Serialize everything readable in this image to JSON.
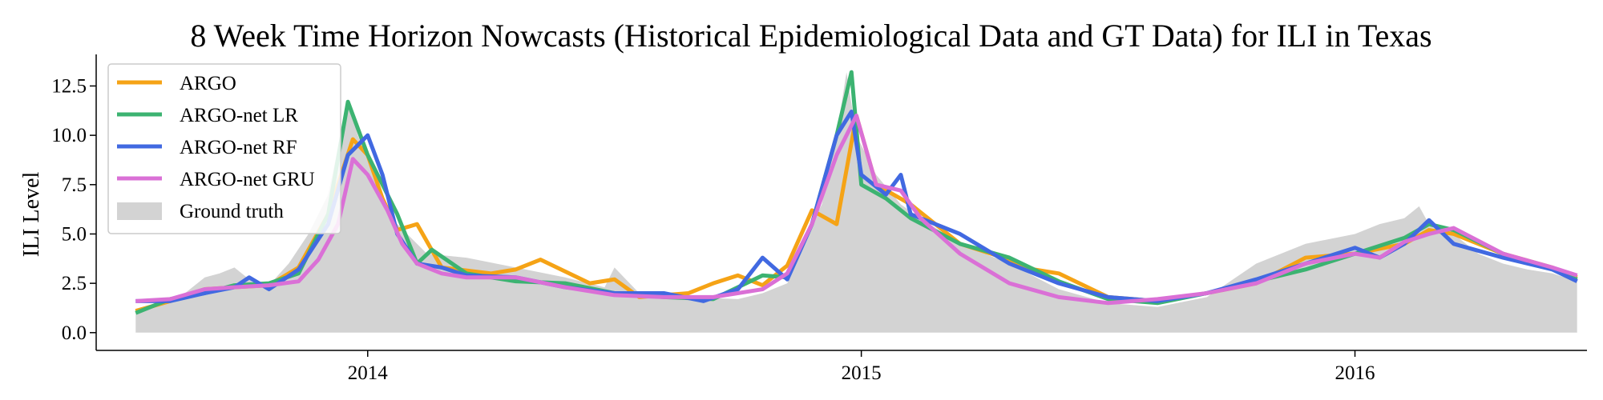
{
  "chart_data": {
    "type": "line",
    "title": "8 Week Time Horizon Nowcasts (Historical Epidemiological Data and GT Data) for ILI in Texas",
    "xlabel": "",
    "ylabel": "ILI Level",
    "ylim": [
      -0.9,
      14.1
    ],
    "xlim": [
      2013.45,
      2016.47
    ],
    "x_ticks": [
      2014,
      2015,
      2016
    ],
    "x_tick_labels": [
      "2014",
      "2015",
      "2016"
    ],
    "y_ticks": [
      0.0,
      2.5,
      5.0,
      7.5,
      10.0,
      12.5
    ],
    "y_tick_labels": [
      "0.0",
      "2.5",
      "5.0",
      "7.5",
      "10.0",
      "12.5"
    ],
    "grid": false,
    "legend_position": "top-left",
    "colors": {
      "ARGO": "#f5a316",
      "ARGO-net LR": "#3cb371",
      "ARGO-net RF": "#4169e1",
      "ARGO-net GRU": "#da70d6",
      "Ground truth": "#d3d3d3"
    },
    "area": {
      "name": "Ground truth",
      "x": [
        2013.53,
        2013.58,
        2013.62,
        2013.67,
        2013.7,
        2013.73,
        2013.77,
        2013.8,
        2013.84,
        2013.88,
        2013.92,
        2013.96,
        2013.98,
        2014.0,
        2014.04,
        2014.08,
        2014.12,
        2014.2,
        2014.3,
        2014.4,
        2014.48,
        2014.5,
        2014.55,
        2014.65,
        2014.75,
        2014.8,
        2014.85,
        2014.88,
        2014.92,
        2014.95,
        2014.97,
        2014.99,
        2015.03,
        2015.08,
        2015.12,
        2015.2,
        2015.3,
        2015.4,
        2015.5,
        2015.6,
        2015.7,
        2015.8,
        2015.9,
        2016.0,
        2016.05,
        2016.1,
        2016.13,
        2016.15,
        2016.2,
        2016.25,
        2016.3,
        2016.35,
        2016.4,
        2016.45
      ],
      "values": [
        1.0,
        1.6,
        1.8,
        2.8,
        3.0,
        3.3,
        2.5,
        2.4,
        3.5,
        5.0,
        7.0,
        11.8,
        10.0,
        8.8,
        6.0,
        5.0,
        4.0,
        3.8,
        3.3,
        2.8,
        2.3,
        3.3,
        2.0,
        1.8,
        1.7,
        2.0,
        2.5,
        4.5,
        6.5,
        10.0,
        13.2,
        10.0,
        8.0,
        6.5,
        5.8,
        4.5,
        3.5,
        2.2,
        1.5,
        1.3,
        1.8,
        3.5,
        4.5,
        5.0,
        5.5,
        5.8,
        6.4,
        5.5,
        5.0,
        4.0,
        3.5,
        3.2,
        3.0,
        2.6
      ]
    },
    "series": [
      {
        "name": "ARGO",
        "x": [
          2013.53,
          2013.6,
          2013.67,
          2013.73,
          2013.8,
          2013.86,
          2013.92,
          2013.97,
          2014.0,
          2014.03,
          2014.06,
          2014.1,
          2014.15,
          2014.25,
          2014.3,
          2014.35,
          2014.45,
          2014.5,
          2014.55,
          2014.65,
          2014.7,
          2014.75,
          2014.8,
          2014.85,
          2014.9,
          2014.95,
          2014.99,
          2015.03,
          2015.1,
          2015.2,
          2015.3,
          2015.35,
          2015.4,
          2015.5,
          2015.6,
          2015.7,
          2015.8,
          2015.9,
          2016.0,
          2016.1,
          2016.15,
          2016.2,
          2016.3,
          2016.4,
          2016.45
        ],
        "values": [
          1.1,
          1.6,
          2.2,
          2.3,
          2.4,
          3.3,
          6.0,
          9.8,
          9.0,
          6.8,
          5.2,
          5.5,
          3.3,
          3.0,
          3.2,
          3.7,
          2.5,
          2.7,
          1.8,
          2.0,
          2.5,
          2.9,
          2.4,
          3.4,
          6.2,
          5.5,
          11.0,
          7.5,
          6.5,
          4.5,
          3.7,
          3.2,
          3.0,
          1.8,
          1.6,
          2.0,
          2.5,
          3.8,
          4.0,
          4.5,
          5.2,
          5.0,
          4.0,
          3.3,
          2.8
        ]
      },
      {
        "name": "ARGO-net LR",
        "x": [
          2013.53,
          2013.6,
          2013.67,
          2013.73,
          2013.8,
          2013.86,
          2013.92,
          2013.96,
          2014.0,
          2014.03,
          2014.06,
          2014.1,
          2014.13,
          2014.2,
          2014.3,
          2014.4,
          2014.5,
          2014.6,
          2014.7,
          2014.8,
          2014.85,
          2014.9,
          2014.95,
          2014.98,
          2015.0,
          2015.05,
          2015.1,
          2015.2,
          2015.3,
          2015.4,
          2015.5,
          2015.6,
          2015.7,
          2015.8,
          2015.9,
          2016.0,
          2016.1,
          2016.15,
          2016.2,
          2016.3,
          2016.4,
          2016.45
        ],
        "values": [
          1.0,
          1.7,
          2.0,
          2.4,
          2.5,
          3.0,
          6.0,
          11.7,
          9.0,
          7.5,
          6.0,
          3.5,
          4.2,
          3.0,
          2.6,
          2.5,
          2.0,
          1.8,
          1.7,
          2.9,
          2.8,
          5.5,
          10.0,
          13.2,
          7.5,
          6.8,
          5.8,
          4.5,
          3.8,
          2.6,
          1.7,
          1.5,
          2.0,
          2.6,
          3.2,
          4.0,
          4.8,
          5.5,
          5.2,
          4.0,
          3.2,
          2.7
        ]
      },
      {
        "name": "ARGO-net RF",
        "x": [
          2013.53,
          2013.6,
          2013.67,
          2013.73,
          2013.76,
          2013.8,
          2013.86,
          2013.92,
          2013.96,
          2014.0,
          2014.03,
          2014.06,
          2014.1,
          2014.15,
          2014.2,
          2014.3,
          2014.4,
          2014.5,
          2014.6,
          2014.68,
          2014.75,
          2014.8,
          2014.85,
          2014.9,
          2014.95,
          2014.98,
          2015.0,
          2015.05,
          2015.08,
          2015.1,
          2015.2,
          2015.3,
          2015.4,
          2015.5,
          2015.6,
          2015.7,
          2015.8,
          2015.9,
          2016.0,
          2016.05,
          2016.1,
          2016.15,
          2016.2,
          2016.3,
          2016.4,
          2016.45
        ],
        "values": [
          1.6,
          1.6,
          2.0,
          2.3,
          2.8,
          2.2,
          3.2,
          5.5,
          9.0,
          10.0,
          8.0,
          5.0,
          3.5,
          3.3,
          2.9,
          2.8,
          2.3,
          2.0,
          2.0,
          1.6,
          2.2,
          3.8,
          2.7,
          5.5,
          10.0,
          11.2,
          8.0,
          7.0,
          8.0,
          6.0,
          5.0,
          3.5,
          2.5,
          1.8,
          1.6,
          2.0,
          2.7,
          3.5,
          4.3,
          3.8,
          4.5,
          5.7,
          4.5,
          3.8,
          3.2,
          2.6
        ]
      },
      {
        "name": "ARGO-net GRU",
        "x": [
          2013.53,
          2013.6,
          2013.67,
          2013.73,
          2013.8,
          2013.86,
          2013.9,
          2013.94,
          2013.97,
          2014.0,
          2014.04,
          2014.07,
          2014.1,
          2014.15,
          2014.2,
          2014.3,
          2014.4,
          2014.5,
          2014.6,
          2014.7,
          2014.8,
          2014.85,
          2014.9,
          2014.95,
          2014.99,
          2015.03,
          2015.08,
          2015.12,
          2015.2,
          2015.3,
          2015.4,
          2015.5,
          2015.6,
          2015.7,
          2015.8,
          2015.9,
          2016.0,
          2016.05,
          2016.1,
          2016.15,
          2016.2,
          2016.3,
          2016.4,
          2016.45
        ],
        "values": [
          1.6,
          1.7,
          2.2,
          2.3,
          2.4,
          2.6,
          3.7,
          5.5,
          8.8,
          8.0,
          6.2,
          4.5,
          3.5,
          3.0,
          2.8,
          2.8,
          2.3,
          1.9,
          1.8,
          1.8,
          2.2,
          3.0,
          5.5,
          9.0,
          11.0,
          7.5,
          7.2,
          5.8,
          4.0,
          2.5,
          1.8,
          1.5,
          1.7,
          2.0,
          2.5,
          3.5,
          4.0,
          3.8,
          4.6,
          5.0,
          5.3,
          4.0,
          3.3,
          2.9
        ]
      }
    ],
    "legend": [
      "ARGO",
      "ARGO-net LR",
      "ARGO-net RF",
      "ARGO-net GRU",
      "Ground truth"
    ]
  }
}
